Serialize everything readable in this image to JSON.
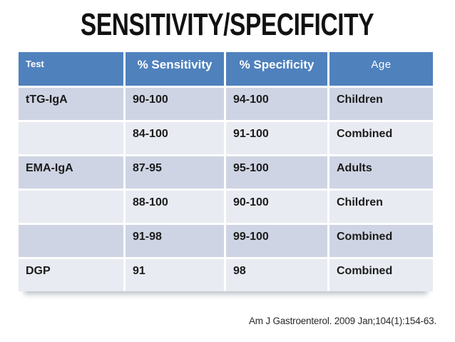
{
  "slide": {
    "title": "SENSITIVITY/SPECIFICITY",
    "citation": "Am J Gastroenterol. 2009 Jan;104(1):154-63."
  },
  "table": {
    "columns": [
      "Test",
      "% Sensitivity",
      "% Specificity",
      "Age"
    ],
    "rows": [
      {
        "test": "tTG-IgA",
        "sensitivity": "90-100",
        "specificity": "94-100",
        "age": "Children"
      },
      {
        "test": "",
        "sensitivity": "84-100",
        "specificity": "91-100",
        "age": "Combined"
      },
      {
        "test": "EMA-IgA",
        "sensitivity": "87-95",
        "specificity": "95-100",
        "age": "Adults"
      },
      {
        "test": "",
        "sensitivity": "88-100",
        "specificity": "90-100",
        "age": "Children"
      },
      {
        "test": "",
        "sensitivity": "91-98",
        "specificity": "99-100",
        "age": "Combined"
      },
      {
        "test": "DGP",
        "sensitivity": "91",
        "specificity": "98",
        "age": "Combined"
      }
    ]
  },
  "colors": {
    "header_bg": "#4F81BD",
    "header_text": "#FFFFFF",
    "band_dark": "#CED4E3",
    "band_light": "#E9EBF2",
    "body_text": "#1B1B1B"
  }
}
